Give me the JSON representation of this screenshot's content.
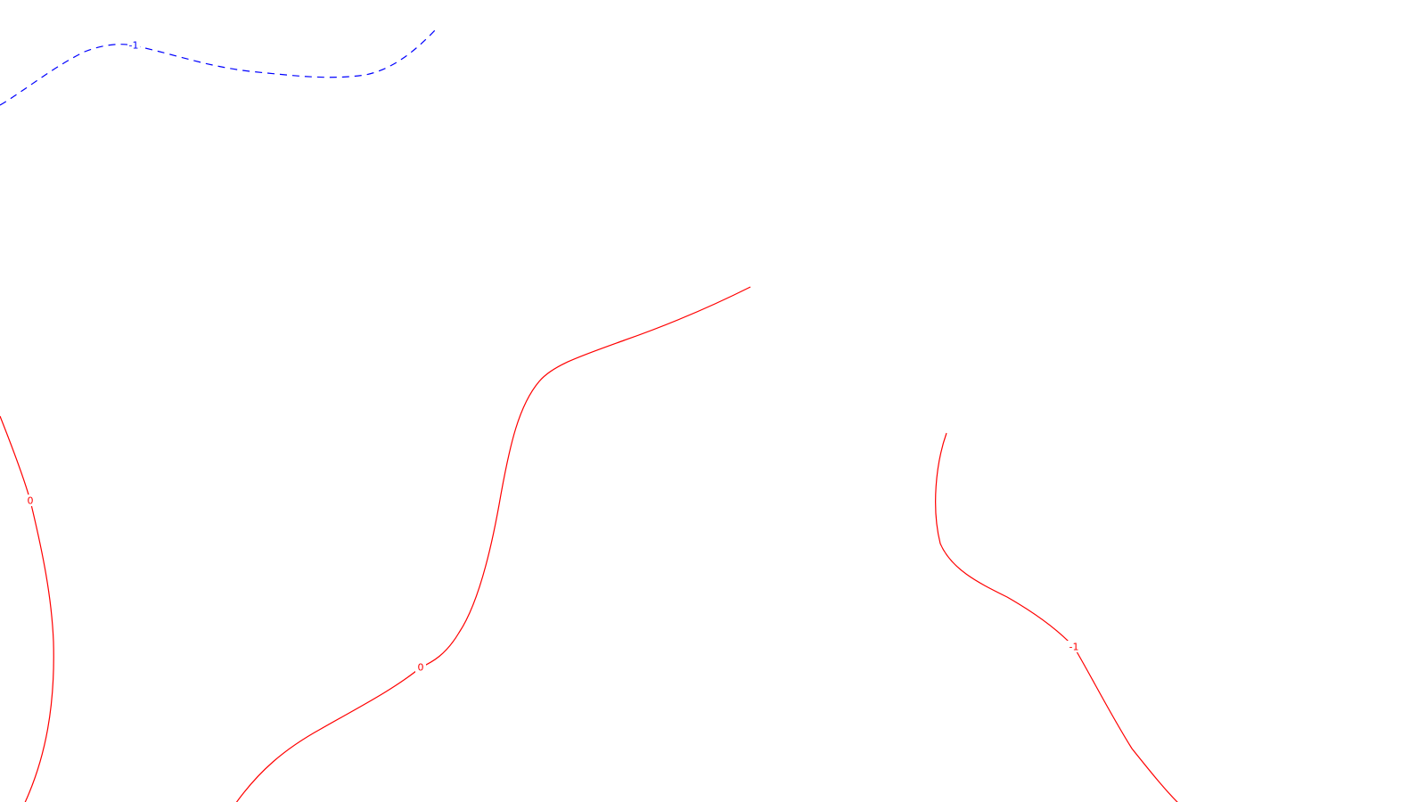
{
  "map": {
    "contours": [
      {
        "id": "blue-dashed",
        "label": "-1",
        "color": "#0000ff",
        "style": "dashed"
      },
      {
        "id": "red-left",
        "label": "0",
        "color": "#ff0000",
        "style": "solid"
      },
      {
        "id": "red-center",
        "label": "0",
        "color": "#ff0000",
        "style": "solid"
      },
      {
        "id": "red-right",
        "label": "-1",
        "color": "#ff0000",
        "style": "solid"
      }
    ]
  }
}
